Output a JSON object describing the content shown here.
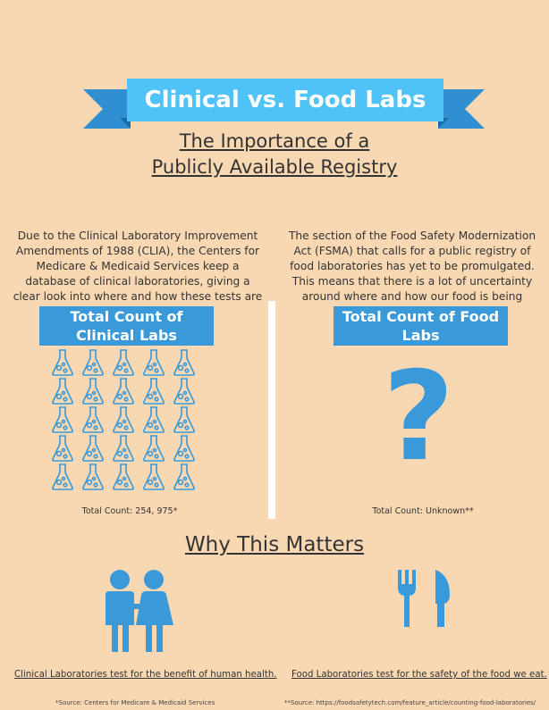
{
  "banner": {
    "title": "Clinical vs. Food Labs"
  },
  "subtitle": {
    "line1": "The Importance of a",
    "line2": "Publicly Available Registry"
  },
  "clinical": {
    "paragraph": "Due to the Clinical Laboratory Improvement Amendments of 1988 (CLIA), the Centers for Medicare & Medicaid Services keep a database of clinical laboratories, giving a clear look into where and how these tests are being conducted.",
    "box_title": "Total Count of Clinical Labs",
    "total_count": "Total Count: 254, 975*",
    "icon": "flask-icon"
  },
  "food": {
    "paragraph": "The section of the Food Safety Modernization Act (FSMA) that calls for a public registry of food laboratories has yet to be promulgated. This means that there is a lot of uncertainty around where and how our food is being tested.",
    "box_title": "Total Count of Food Labs",
    "question_mark": "?",
    "total_count": "Total Count: Unknown**",
    "icon": "question-mark-icon"
  },
  "why": {
    "heading": "Why This Matters",
    "clinical_caption": "Clinical Laboratories test for the benefit of human health.",
    "food_caption": "Food Laboratories test for the safety of the food we eat."
  },
  "sources": {
    "clinical": "*Source: Centers for Medicare & Medicaid Services",
    "food": "**Source: https://foodsafetytech.com/feature_article/counting-food-laboratories/"
  },
  "colors": {
    "background": "#f8d8b3",
    "accent": "#3a9ad9",
    "banner": "#4fc3f7",
    "ribbon": "#2f8fd0"
  }
}
